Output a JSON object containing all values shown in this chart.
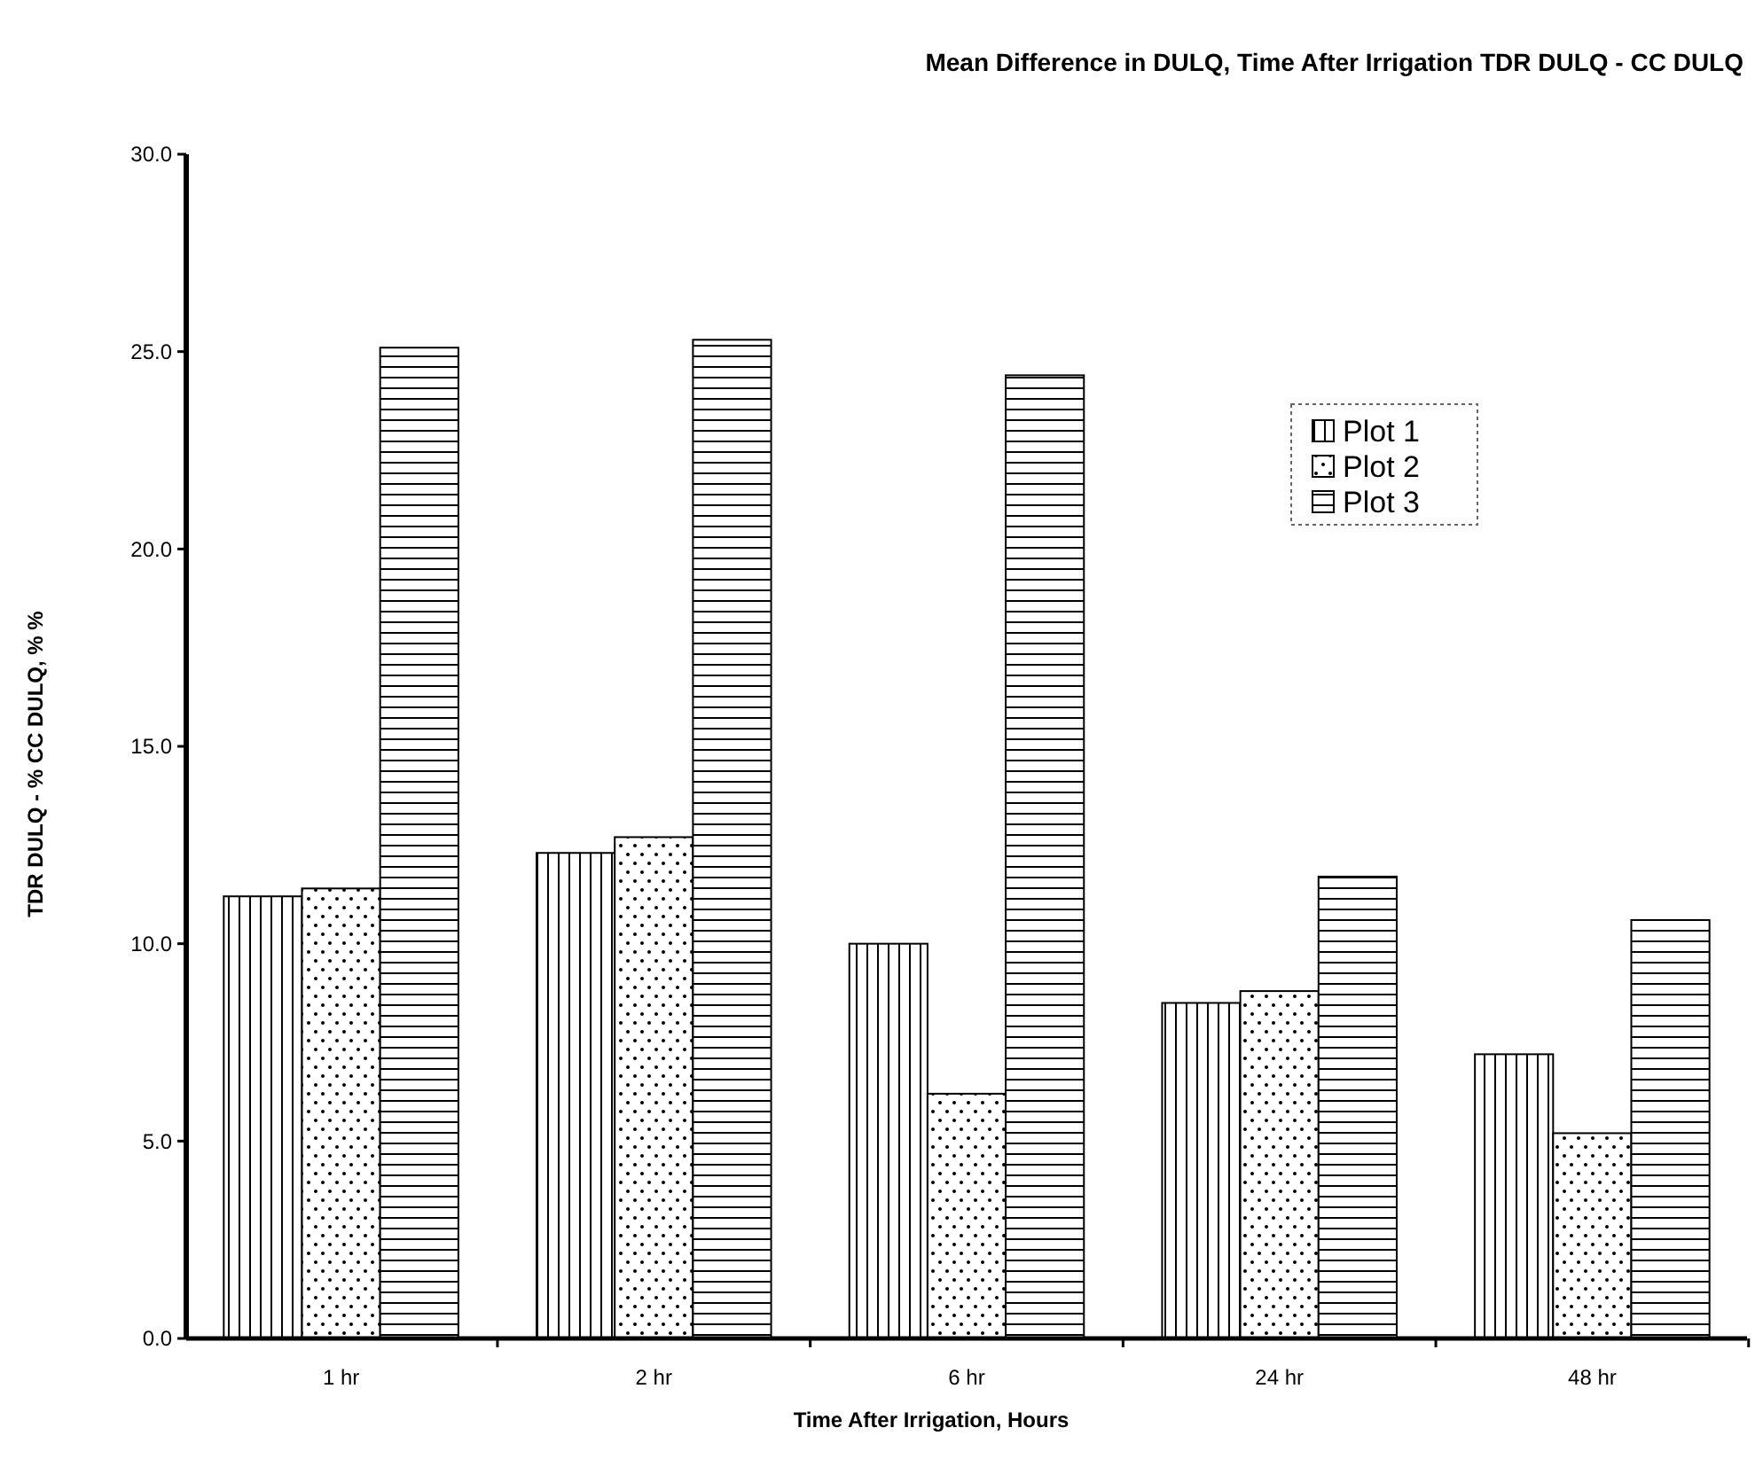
{
  "chart_data": {
    "type": "bar",
    "title": "Mean Difference in DULQ, Time After Irrigation TDR DULQ - CC DULQ",
    "xlabel": "Time After Irrigation, Hours",
    "ylabel": "TDR DULQ - % CC DULQ, % %",
    "categories": [
      "1 hr",
      "2 hr",
      "6 hr",
      "24 hr",
      "48 hr"
    ],
    "series": [
      {
        "name": "Plot 1",
        "color": "#000000",
        "values": [
          11.2,
          12.3,
          10.0,
          8.5,
          7.2
        ]
      },
      {
        "name": "Plot 2",
        "color": "#000000",
        "values": [
          11.4,
          12.7,
          6.2,
          8.8,
          5.2
        ]
      },
      {
        "name": "Plot 3",
        "color": "#000000",
        "values": [
          25.1,
          25.3,
          24.4,
          11.7,
          10.6
        ]
      }
    ],
    "ylim": [
      0,
      30
    ],
    "yticks": [
      {
        "value": 0,
        "label": "0.0"
      },
      {
        "value": 5,
        "label": "5.0"
      },
      {
        "value": 10,
        "label": "10.0"
      },
      {
        "value": 15,
        "label": "15.0"
      },
      {
        "value": 20,
        "label": "20.0"
      },
      {
        "value": 25,
        "label": "25.0"
      },
      {
        "value": 30,
        "label": "30.0"
      }
    ],
    "grid": false,
    "legend": "top right"
  }
}
